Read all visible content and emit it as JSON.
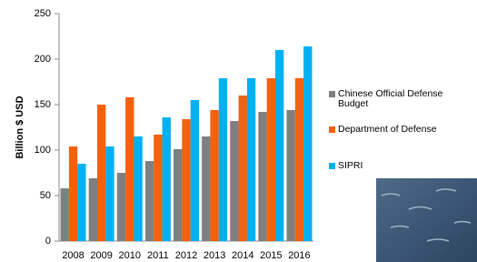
{
  "chart_data": {
    "type": "bar",
    "y_label": "Billion $ USD",
    "categories": [
      "2008",
      "2009",
      "2010",
      "2011",
      "2012",
      "2013",
      "2014",
      "2015",
      "2016"
    ],
    "series": [
      {
        "name": "Chinese Official Defense Budget",
        "color": "#7f7f7f",
        "values": [
          58,
          69,
          75,
          88,
          101,
          115,
          132,
          142,
          144
        ]
      },
      {
        "name": "Department of Defense",
        "color": "#f4600c",
        "values": [
          104,
          150,
          158,
          117,
          134,
          144,
          160,
          179,
          179
        ]
      },
      {
        "name": "SIPRI",
        "color": "#00b0f0",
        "values": [
          85,
          104,
          115,
          136,
          155,
          179,
          179,
          210,
          214
        ]
      }
    ],
    "ylim": [
      0,
      250
    ],
    "yticks": [
      0,
      50,
      100,
      150,
      200,
      250
    ]
  }
}
